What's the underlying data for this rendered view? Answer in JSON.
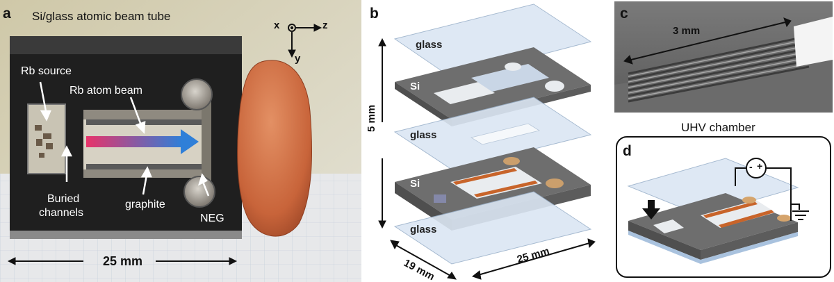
{
  "panel_a": {
    "label": "a",
    "title": "Si/glass atomic beam tube",
    "axes": {
      "x": "x",
      "z": "z",
      "y": "y"
    },
    "annotations": {
      "rb_source": "Rb source",
      "rb_beam": "Rb atom beam",
      "buried_line1": "Buried",
      "buried_line2": "channels",
      "graphite": "graphite",
      "neg": "NEG"
    },
    "scale": "25 mm"
  },
  "panel_b": {
    "label": "b",
    "layers": [
      "glass",
      "Si",
      "glass",
      "Si",
      "glass"
    ],
    "dim_height": "5 mm",
    "dim_depth": "19 mm",
    "dim_width": "25 mm"
  },
  "panel_c": {
    "label": "c",
    "dim": "3 mm"
  },
  "panel_d": {
    "label": "d",
    "title": "UHV chamber",
    "minus": "-",
    "plus": "+"
  },
  "colors": {
    "background": "#ffffff",
    "silicon": "#6b6b6b",
    "glass": "#dbe6f3",
    "graphite_strip": "#c8642a",
    "beam_start": "#e8336a",
    "beam_end": "#2f7fd8",
    "seed": "#c8643a"
  }
}
